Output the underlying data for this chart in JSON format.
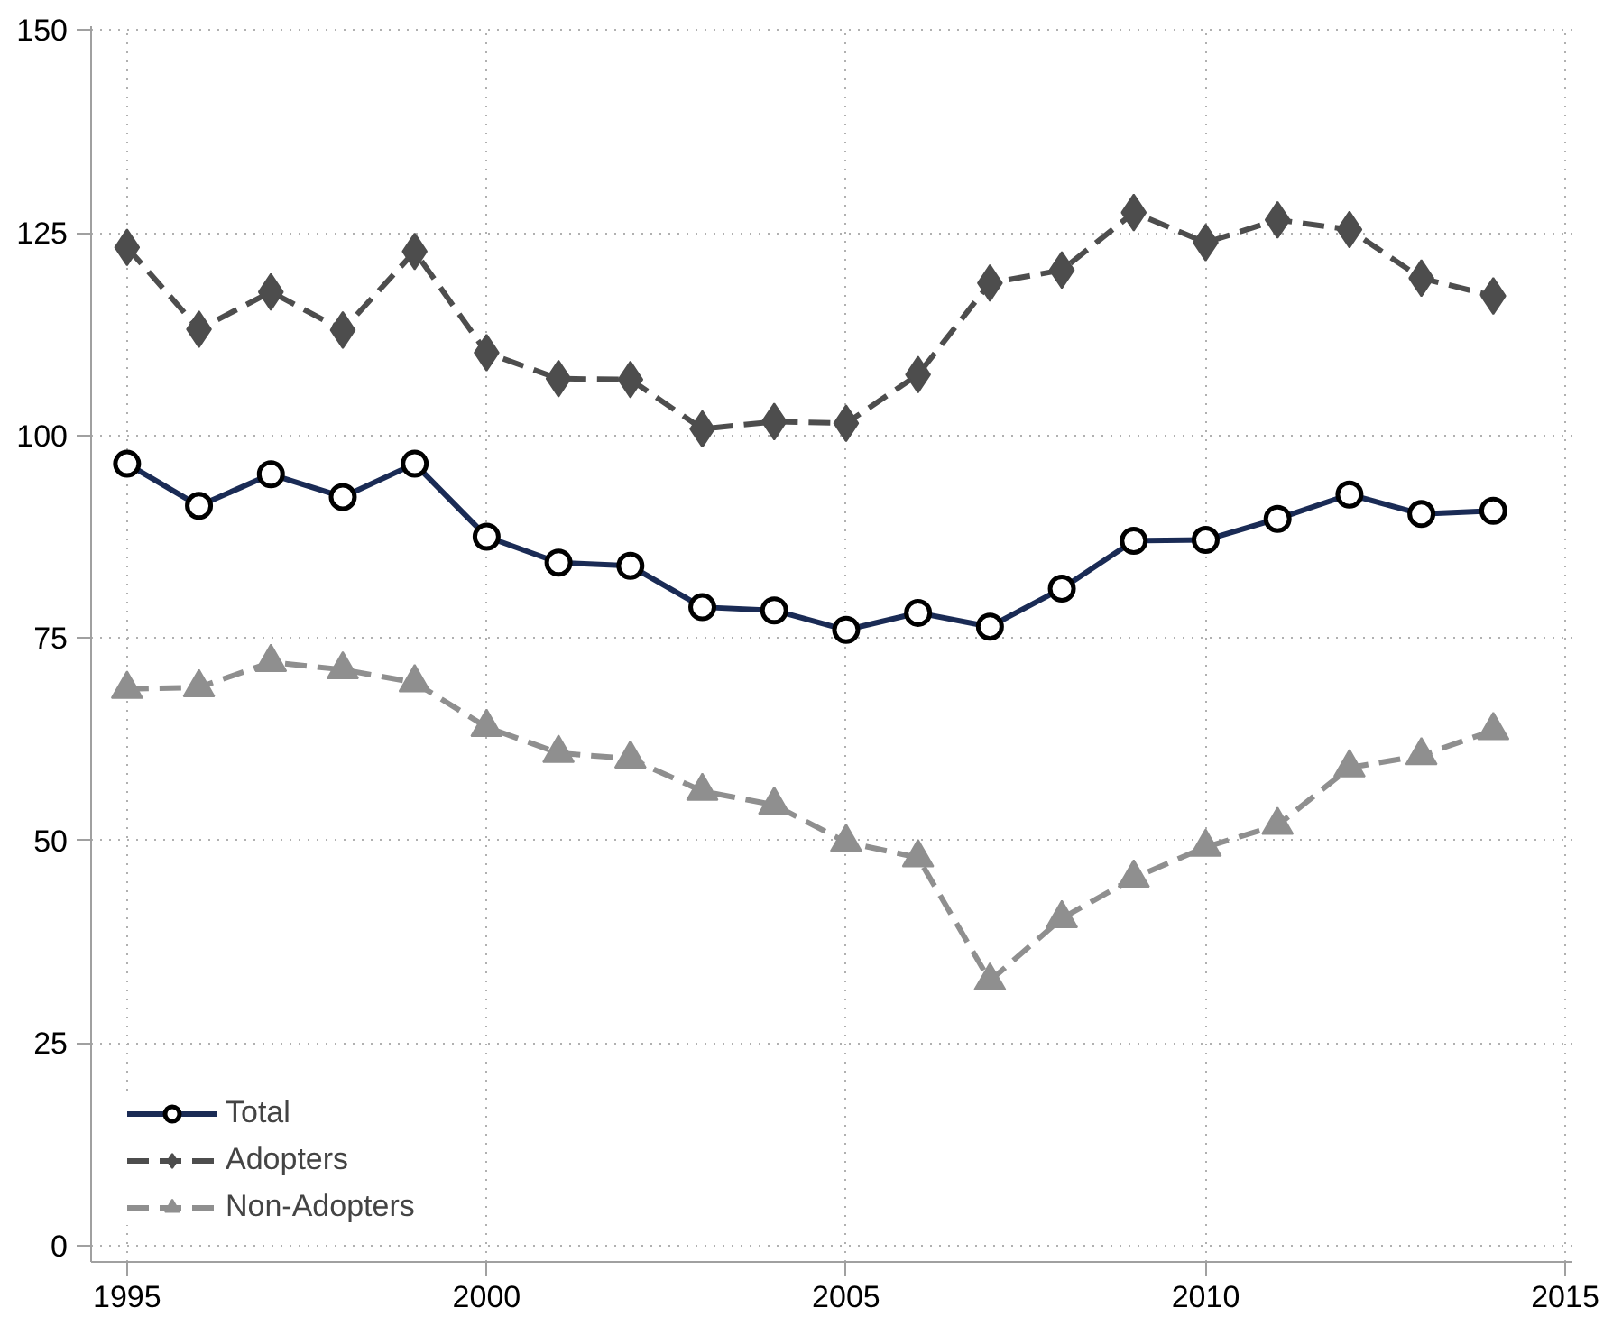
{
  "chart_data": {
    "type": "line",
    "x": [
      1995,
      1996,
      1997,
      1998,
      1999,
      2000,
      2001,
      2002,
      2003,
      2004,
      2005,
      2006,
      2007,
      2008,
      2009,
      2010,
      2011,
      2012,
      2013,
      2014
    ],
    "series": [
      {
        "name": "Total",
        "color": "#1a2b55",
        "marker": "circle",
        "line_style": "solid",
        "values": [
          96.5,
          91.3,
          95.2,
          92.4,
          96.5,
          87.5,
          84.3,
          83.9,
          78.8,
          78.4,
          76.0,
          78.1,
          76.4,
          81.1,
          87.0,
          87.1,
          89.7,
          92.7,
          90.3,
          90.7
        ]
      },
      {
        "name": "Adopters",
        "color": "#4d4d4d",
        "marker": "diamond",
        "line_style": "dashed",
        "values": [
          123.2,
          113.1,
          117.7,
          113.0,
          122.7,
          110.2,
          107.0,
          106.9,
          100.8,
          101.7,
          101.5,
          107.5,
          118.8,
          120.4,
          127.5,
          123.8,
          126.6,
          125.4,
          119.4,
          117.2
        ]
      },
      {
        "name": "Non-Adopters",
        "color": "#8f8f8f",
        "marker": "triangle",
        "line_style": "dashed",
        "values": [
          68.7,
          68.9,
          72.0,
          71.1,
          69.5,
          64.0,
          60.8,
          60.1,
          56.1,
          54.4,
          49.8,
          47.9,
          32.7,
          40.4,
          45.4,
          49.2,
          51.9,
          59.0,
          60.5,
          63.6
        ]
      }
    ],
    "xlim": [
      1994.5,
      2015.1
    ],
    "xticks": [
      1995,
      2000,
      2005,
      2010,
      2015
    ],
    "ylim": [
      -2,
      150.5
    ],
    "yticks": [
      0,
      25,
      50,
      75,
      100,
      125,
      150
    ],
    "grid": true,
    "legend": "bottom left"
  }
}
